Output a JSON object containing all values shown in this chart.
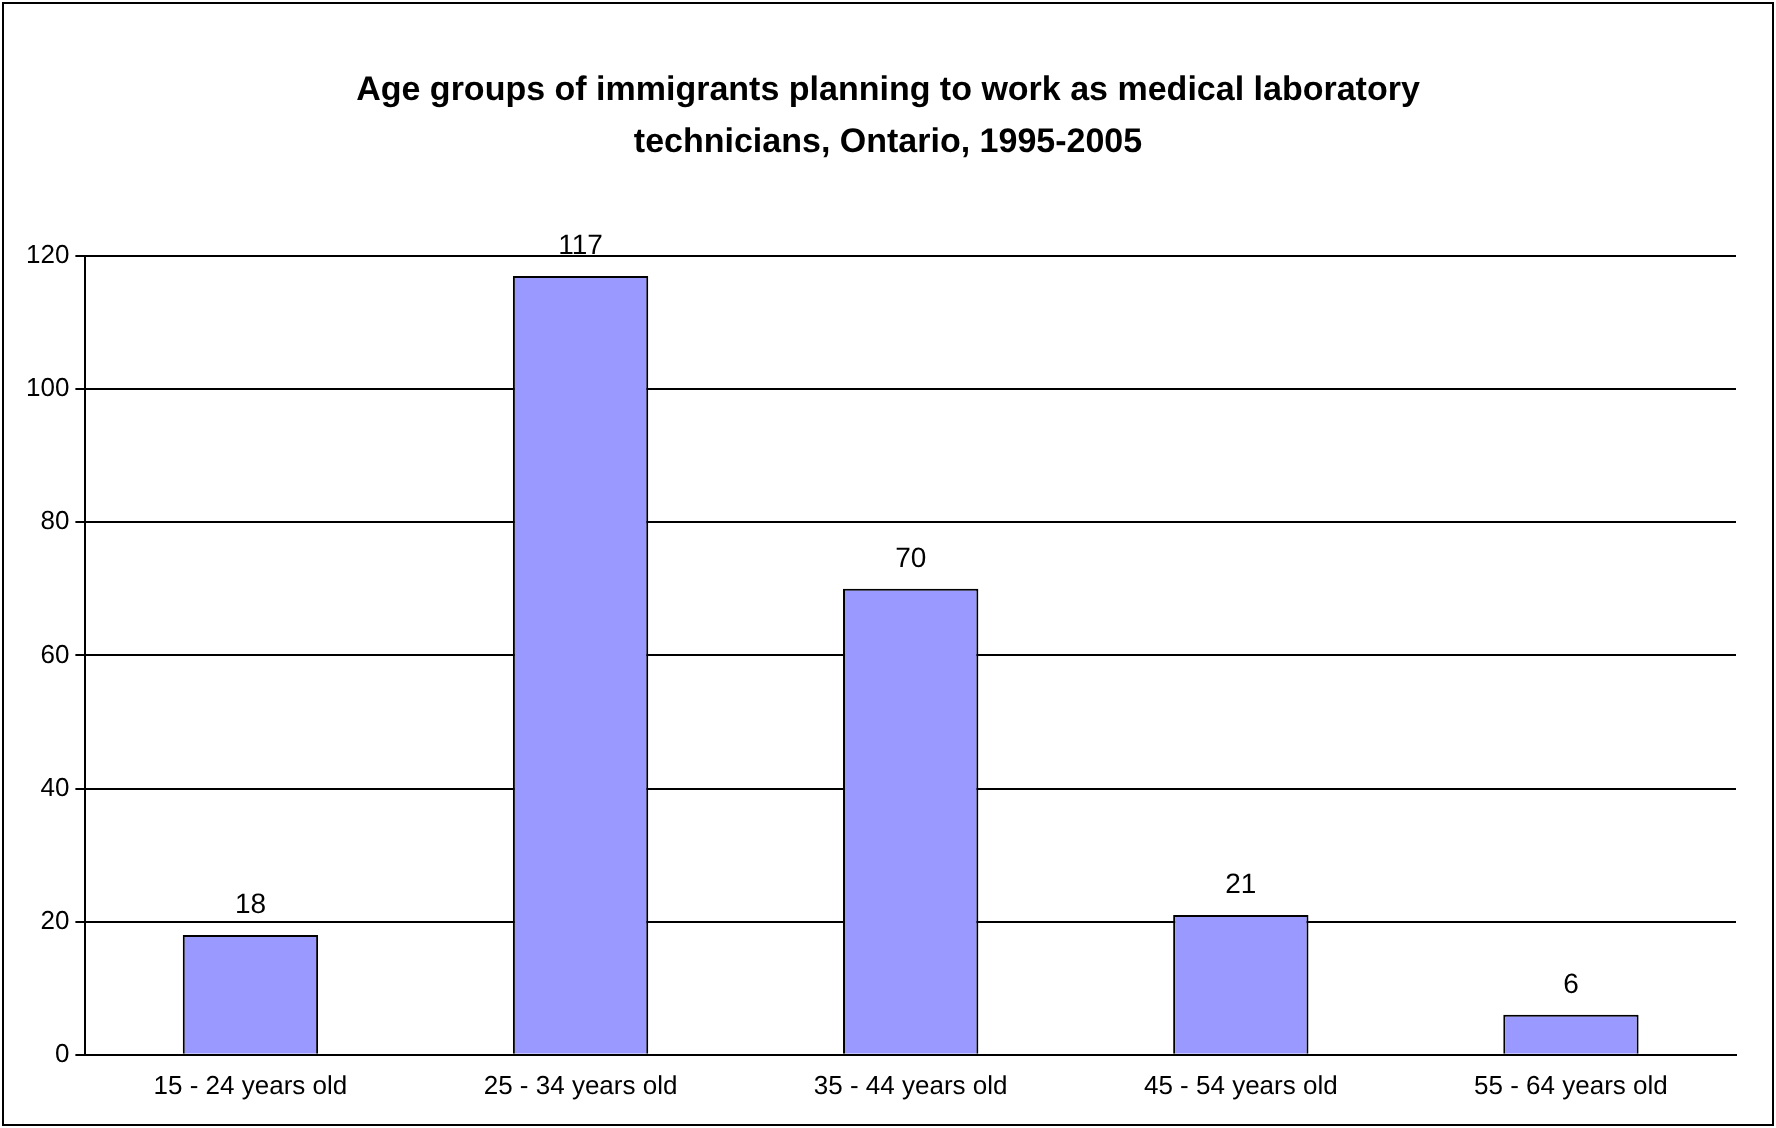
{
  "chart_data": {
    "type": "bar",
    "title": "Age groups of immigrants planning to work as medical laboratory technicians, Ontario, 1995-2005",
    "categories": [
      "15 - 24 years old",
      "25 - 34 years old",
      "35 - 44 years old",
      "45 - 54 years old",
      "55 - 64 years old"
    ],
    "values": [
      18,
      117,
      70,
      21,
      6
    ],
    "color": "#9999ff",
    "ylim": [
      0,
      120
    ],
    "yticks": [
      0,
      20,
      40,
      60,
      80,
      100,
      120
    ],
    "grid": "y",
    "data_labels": true,
    "legend": false
  }
}
